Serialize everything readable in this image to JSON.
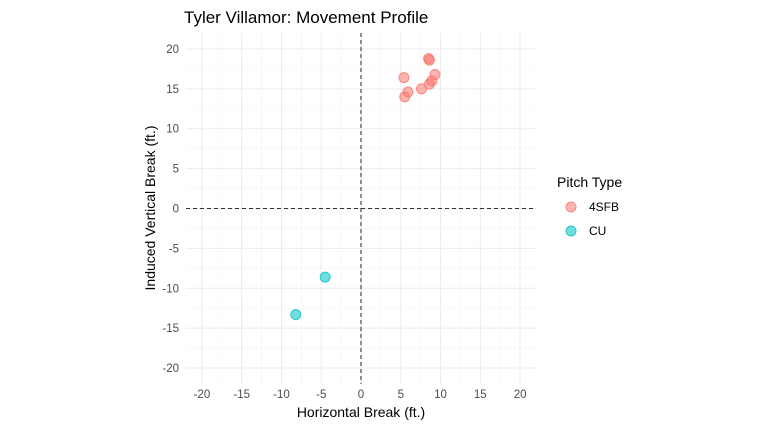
{
  "chart_data": {
    "type": "scatter",
    "title": "Tyler Villamor: Movement Profile",
    "xlabel": "Horizontal Break (ft.)",
    "ylabel": "Induced Vertical Break (ft.)",
    "xlim": [
      -22,
      22
    ],
    "ylim": [
      -22,
      22
    ],
    "x_ticks": [
      -20,
      -15,
      -10,
      -5,
      0,
      5,
      10,
      15,
      20
    ],
    "y_ticks": [
      -20,
      -15,
      -10,
      -5,
      0,
      5,
      10,
      15,
      20
    ],
    "reference_lines": {
      "x": 0,
      "y": 0,
      "style": "dashed"
    },
    "grid": true,
    "legend": {
      "title": "Pitch Type",
      "position": "right"
    },
    "series": [
      {
        "name": "4SFB",
        "color": "#F8766D",
        "points": [
          {
            "x": 8.5,
            "y": 18.8
          },
          {
            "x": 8.6,
            "y": 18.6
          },
          {
            "x": 5.4,
            "y": 16.4
          },
          {
            "x": 9.3,
            "y": 16.8
          },
          {
            "x": 8.9,
            "y": 16.0
          },
          {
            "x": 8.6,
            "y": 15.6
          },
          {
            "x": 7.6,
            "y": 15.0
          },
          {
            "x": 5.9,
            "y": 14.6
          },
          {
            "x": 5.5,
            "y": 14.0
          }
        ]
      },
      {
        "name": "CU",
        "color": "#00BFC4",
        "points": [
          {
            "x": -4.5,
            "y": -8.6
          },
          {
            "x": -8.2,
            "y": -13.3
          }
        ]
      }
    ]
  }
}
